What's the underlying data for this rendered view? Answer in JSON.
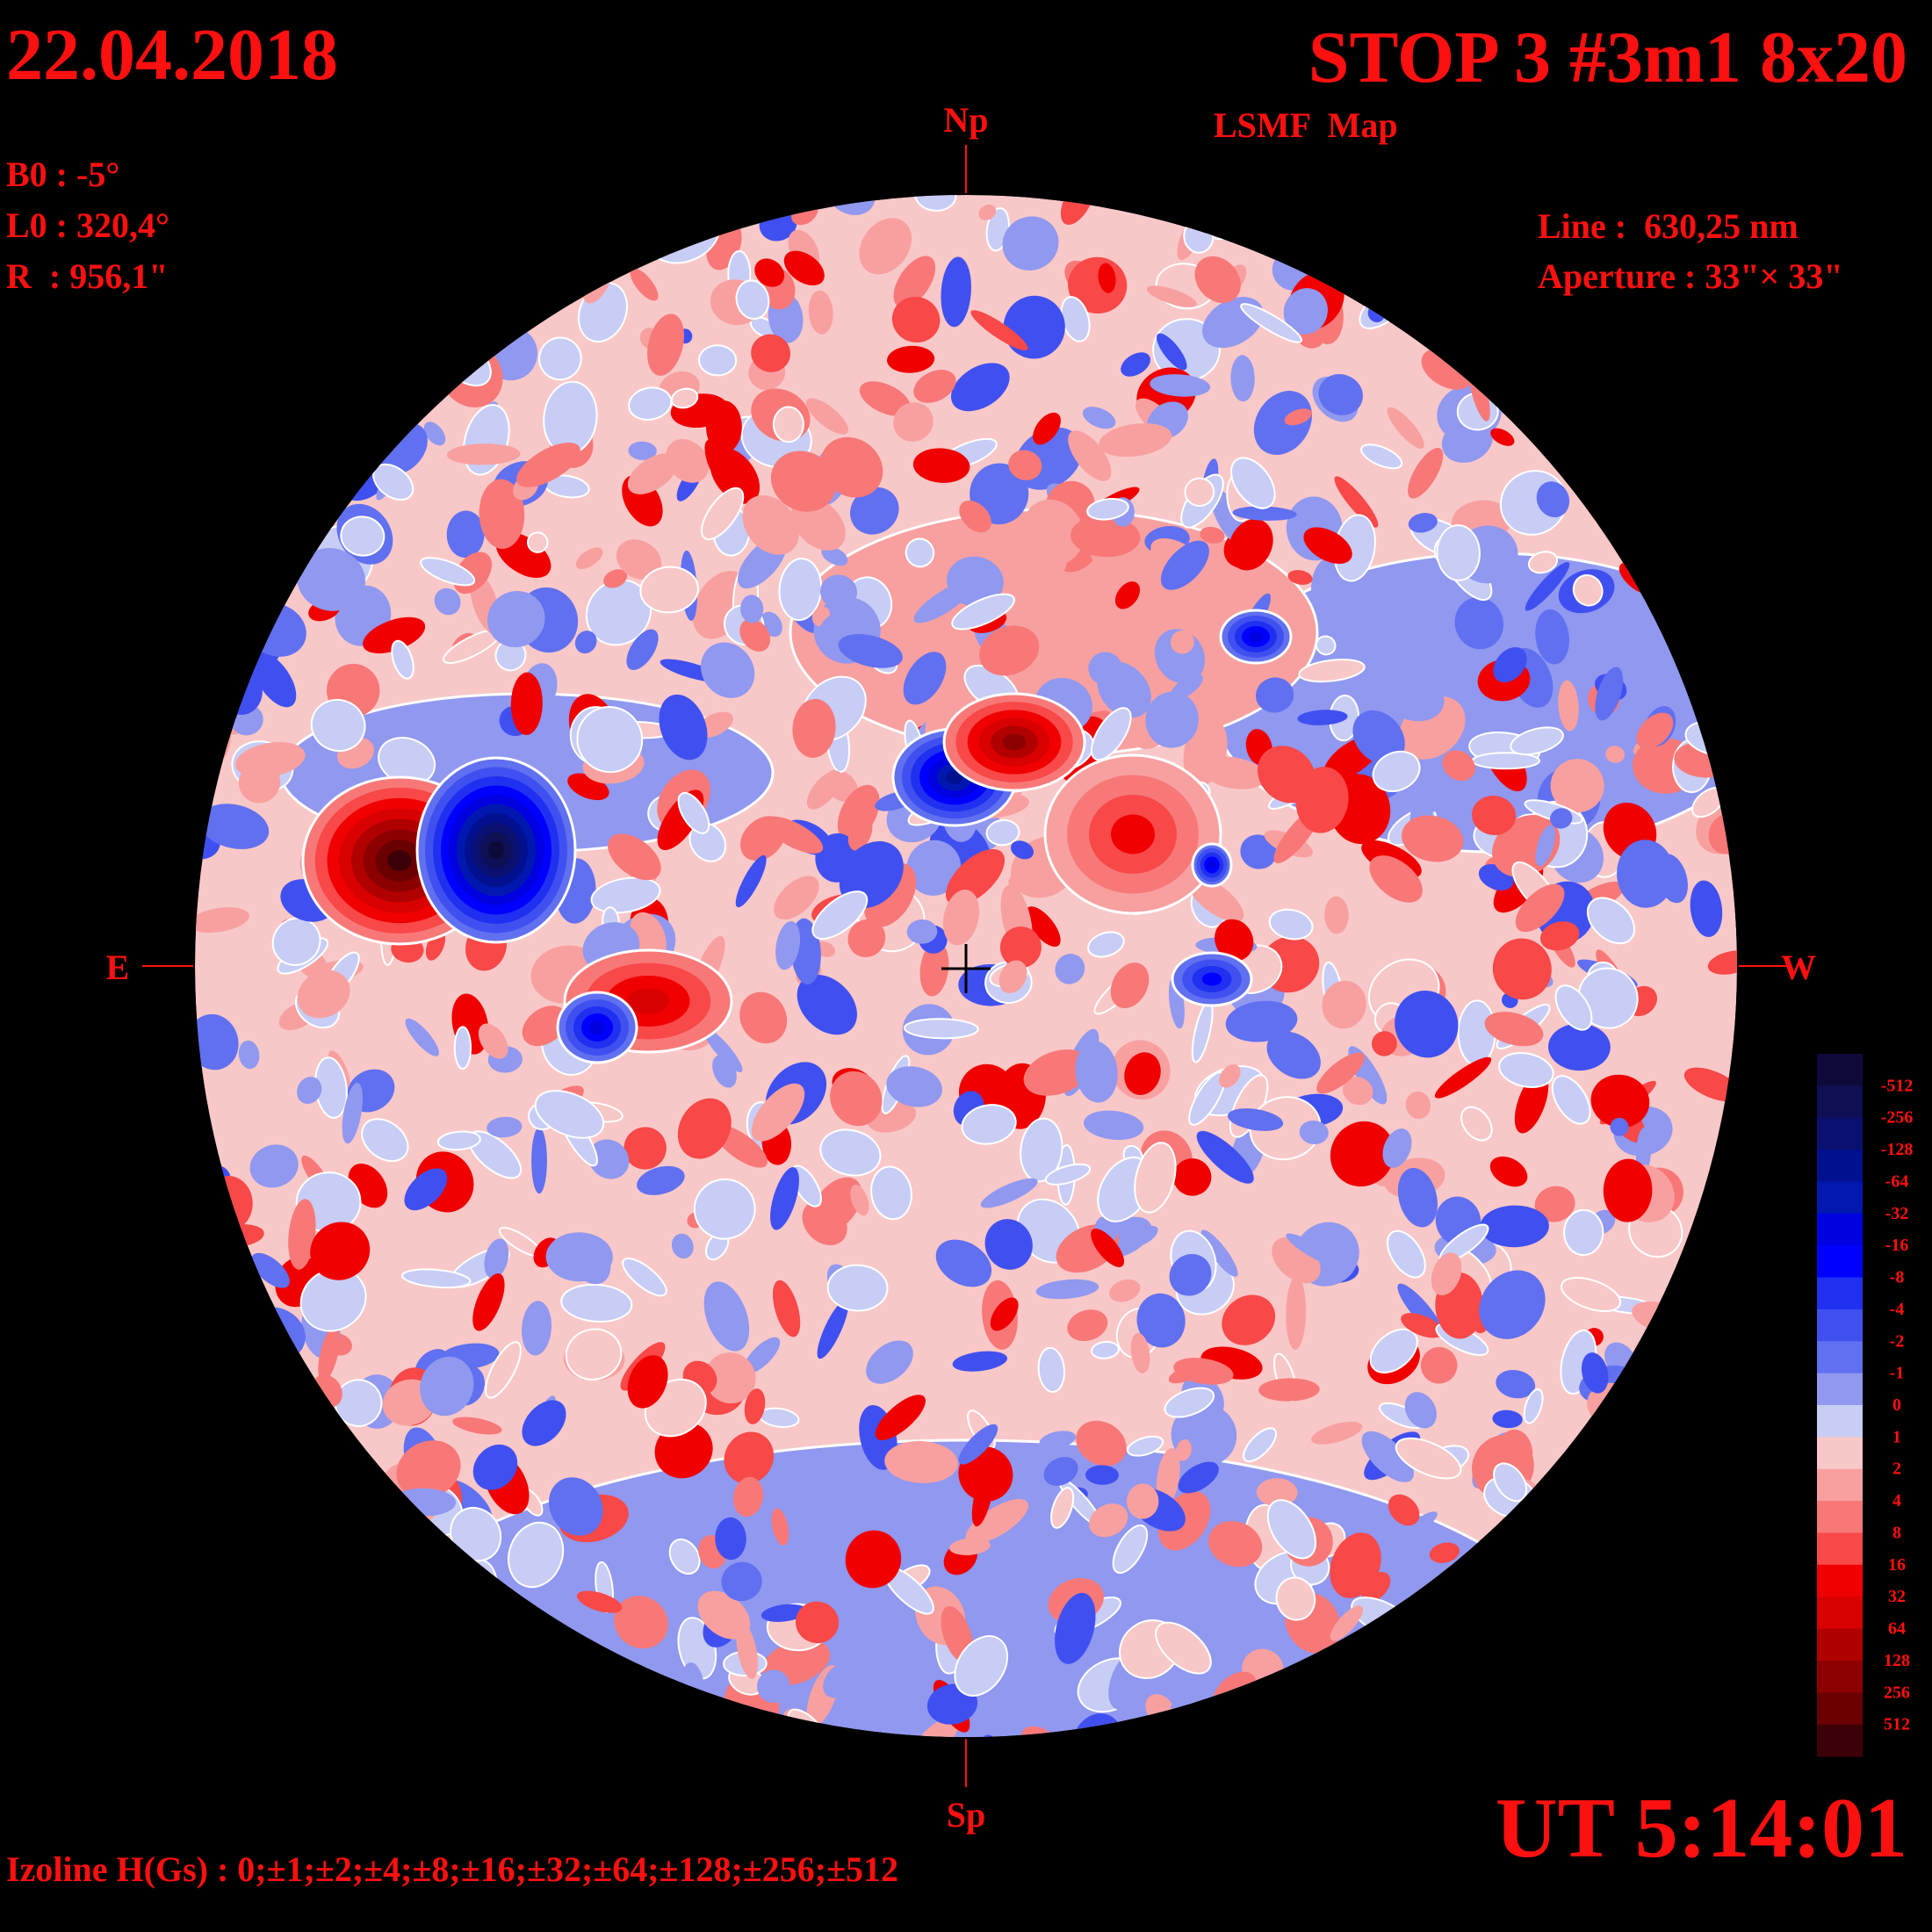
{
  "header": {
    "date": "22.04.2018",
    "title": "STOP 3 #3m1 8x20",
    "subtitle": "LSMF  Map",
    "time": "UT 5:14:01"
  },
  "parameters": [
    "B0 : -5°",
    "L0 : 320,4°",
    "R  : 956,1\""
  ],
  "instrument": [
    "Line :  630,25 nm",
    "Aperture : 33\"× 33\""
  ],
  "directions": {
    "north": "Np",
    "south": "Sp",
    "east": "E",
    "west": "W"
  },
  "isolines": "Izoline H(Gs) : 0;±1;±2;±4;±8;±16;±32;±64;±128;±256;±512",
  "colorbar": {
    "ticks": [
      -512,
      -256,
      -128,
      -64,
      -32,
      -16,
      -8,
      -4,
      -2,
      -1,
      0,
      1,
      2,
      4,
      8,
      16,
      32,
      64,
      128,
      256,
      512
    ],
    "colors": [
      "#0d0a3a",
      "#0f0f55",
      "#0a1070",
      "#00108f",
      "#0018b0",
      "#0000e0",
      "#0000ff",
      "#2030f0",
      "#4050f0",
      "#6070f0",
      "#9098f0",
      "#c8cdf5",
      "#f8c8c8",
      "#f8a0a0",
      "#f87878",
      "#f84848",
      "#f00000",
      "#d80000",
      "#b00000",
      "#8c0000",
      "#6a0000",
      "#3c0008"
    ]
  }
}
